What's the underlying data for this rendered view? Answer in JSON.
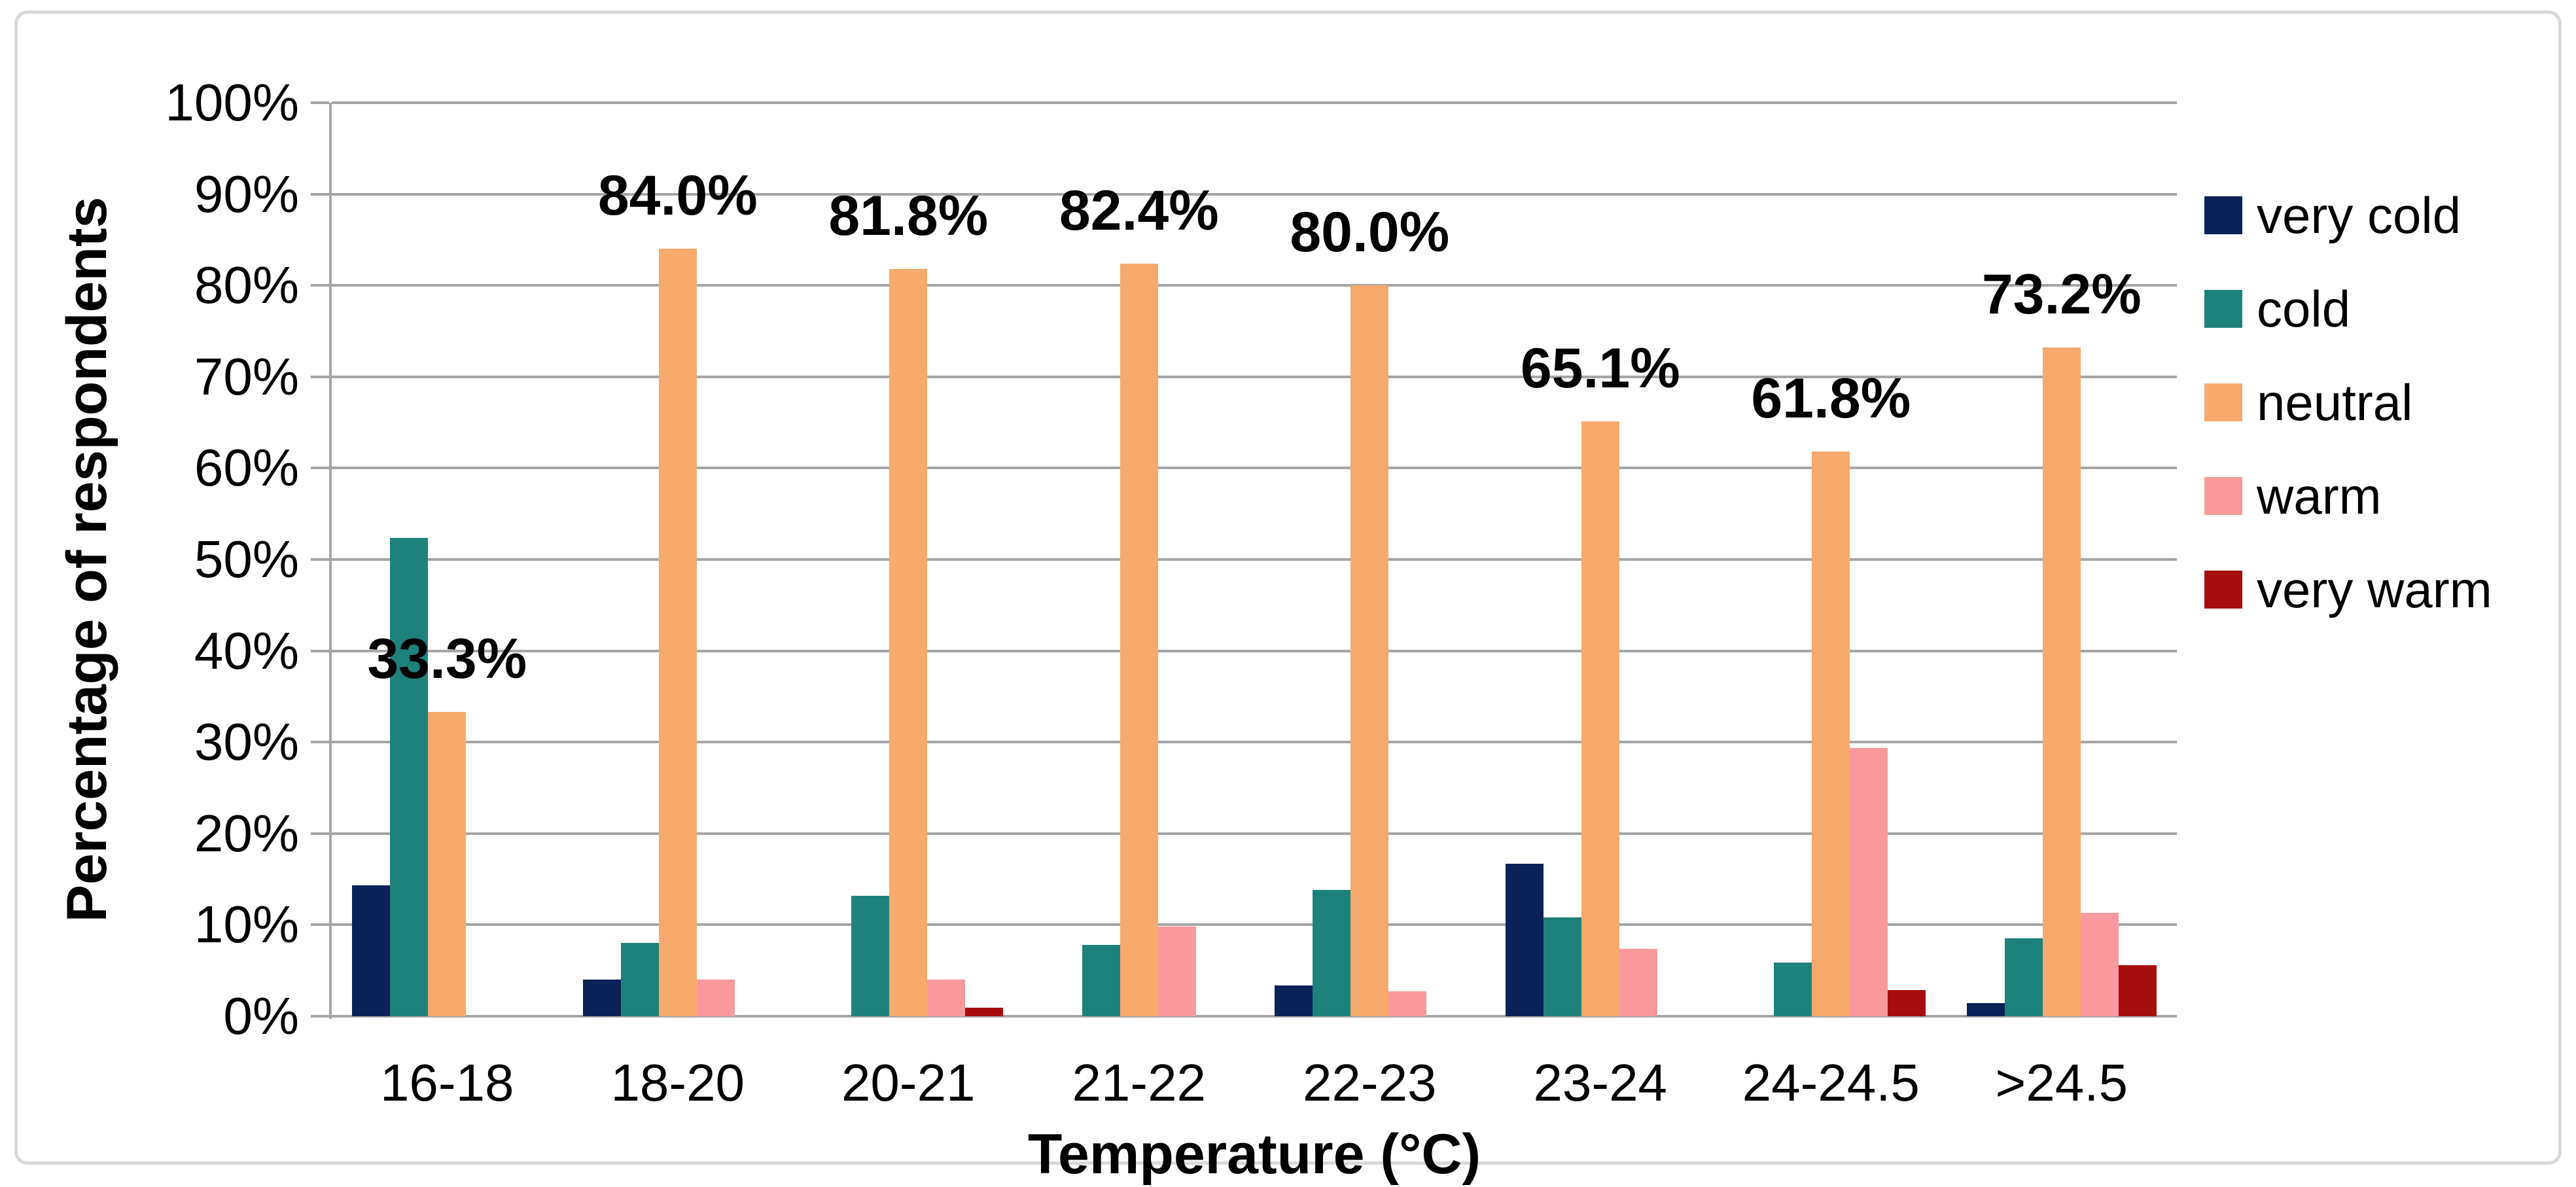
{
  "figure": {
    "background": "#ffffff",
    "border_color": "#d9d9d9",
    "grid_color": "#a6a6a6"
  },
  "chart_data": {
    "type": "bar",
    "title": "",
    "xlabel": "Temperature (°C)",
    "ylabel": "Percentage of respondents",
    "ylim": [
      0,
      100
    ],
    "grid": true,
    "legend_position": "right",
    "yticks": [
      "0%",
      "10%",
      "20%",
      "30%",
      "40%",
      "50%",
      "60%",
      "70%",
      "80%",
      "90%",
      "100%"
    ],
    "categories": [
      "16-18",
      "18-20",
      "20-21",
      "21-22",
      "22-23",
      "23-24",
      "24-24.5",
      ">24.5"
    ],
    "series": [
      {
        "name": "very cold",
        "color": "#0a2258",
        "values": [
          14.3,
          4.0,
          0,
          0,
          3.4,
          16.7,
          0,
          1.4
        ]
      },
      {
        "name": "cold",
        "color": "#1e827b",
        "values": [
          52.4,
          8.0,
          13.2,
          7.8,
          13.8,
          10.8,
          5.9,
          8.5
        ]
      },
      {
        "name": "neutral",
        "color": "#f6aa6d",
        "values": [
          33.3,
          84.0,
          81.8,
          82.4,
          80.0,
          65.1,
          61.8,
          73.2
        ]
      },
      {
        "name": "warm",
        "color": "#fa999d",
        "values": [
          0,
          4.0,
          4.0,
          9.8,
          2.7,
          7.4,
          29.4,
          11.3
        ]
      },
      {
        "name": "very warm",
        "color": "#a60d0d",
        "values": [
          0,
          0,
          0.9,
          0,
          0,
          0,
          2.9,
          5.6
        ]
      }
    ],
    "data_labels": {
      "on_series": "neutral",
      "labels": [
        "33.3%",
        "84.0%",
        "81.8%",
        "82.4%",
        "80.0%",
        "65.1%",
        "61.8%",
        "73.2%"
      ]
    }
  }
}
